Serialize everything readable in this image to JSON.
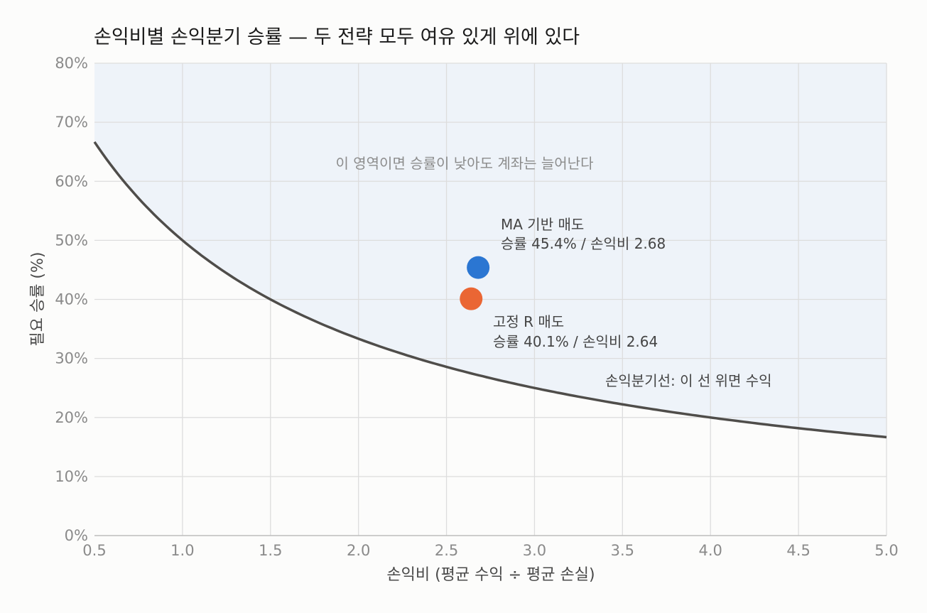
{
  "chart_data": {
    "type": "scatter",
    "title": "손익비별 손익분기 승률 — 두 전략 모두 여유 있게 위에 있다",
    "xlabel": "손익비 (평균 수익 ÷ 평균 손실)",
    "ylabel": "필요 승률 (%)",
    "xlim": [
      0.5,
      5.0
    ],
    "ylim": [
      0,
      80
    ],
    "x_ticks": [
      "0.5",
      "1.0",
      "1.5",
      "2.0",
      "2.5",
      "3.0",
      "3.5",
      "4.0",
      "4.5",
      "5.0"
    ],
    "y_ticks": [
      "0%",
      "10%",
      "20%",
      "30%",
      "40%",
      "50%",
      "60%",
      "70%",
      "80%"
    ],
    "grid": true,
    "curve": {
      "formula": "y = 100 / (1 + x)",
      "label": "손익분기선: 이 선 위면 수익",
      "color": "#4f4d4a"
    },
    "shaded_region": {
      "label": "이 영역이면 승률이 낮아도 계좌는 늘어난다",
      "color": "#eef3f9"
    },
    "points": [
      {
        "x": 2.68,
        "y": 45.4,
        "color": "#2b76d2",
        "label_line1": "MA 기반 매도",
        "label_line2": "승률 45.4% / 손익비 2.68"
      },
      {
        "x": 2.64,
        "y": 40.1,
        "color": "#ea6634",
        "label_line1": "고정 R 매도",
        "label_line2": "승률 40.1% / 손익비 2.64"
      }
    ]
  }
}
